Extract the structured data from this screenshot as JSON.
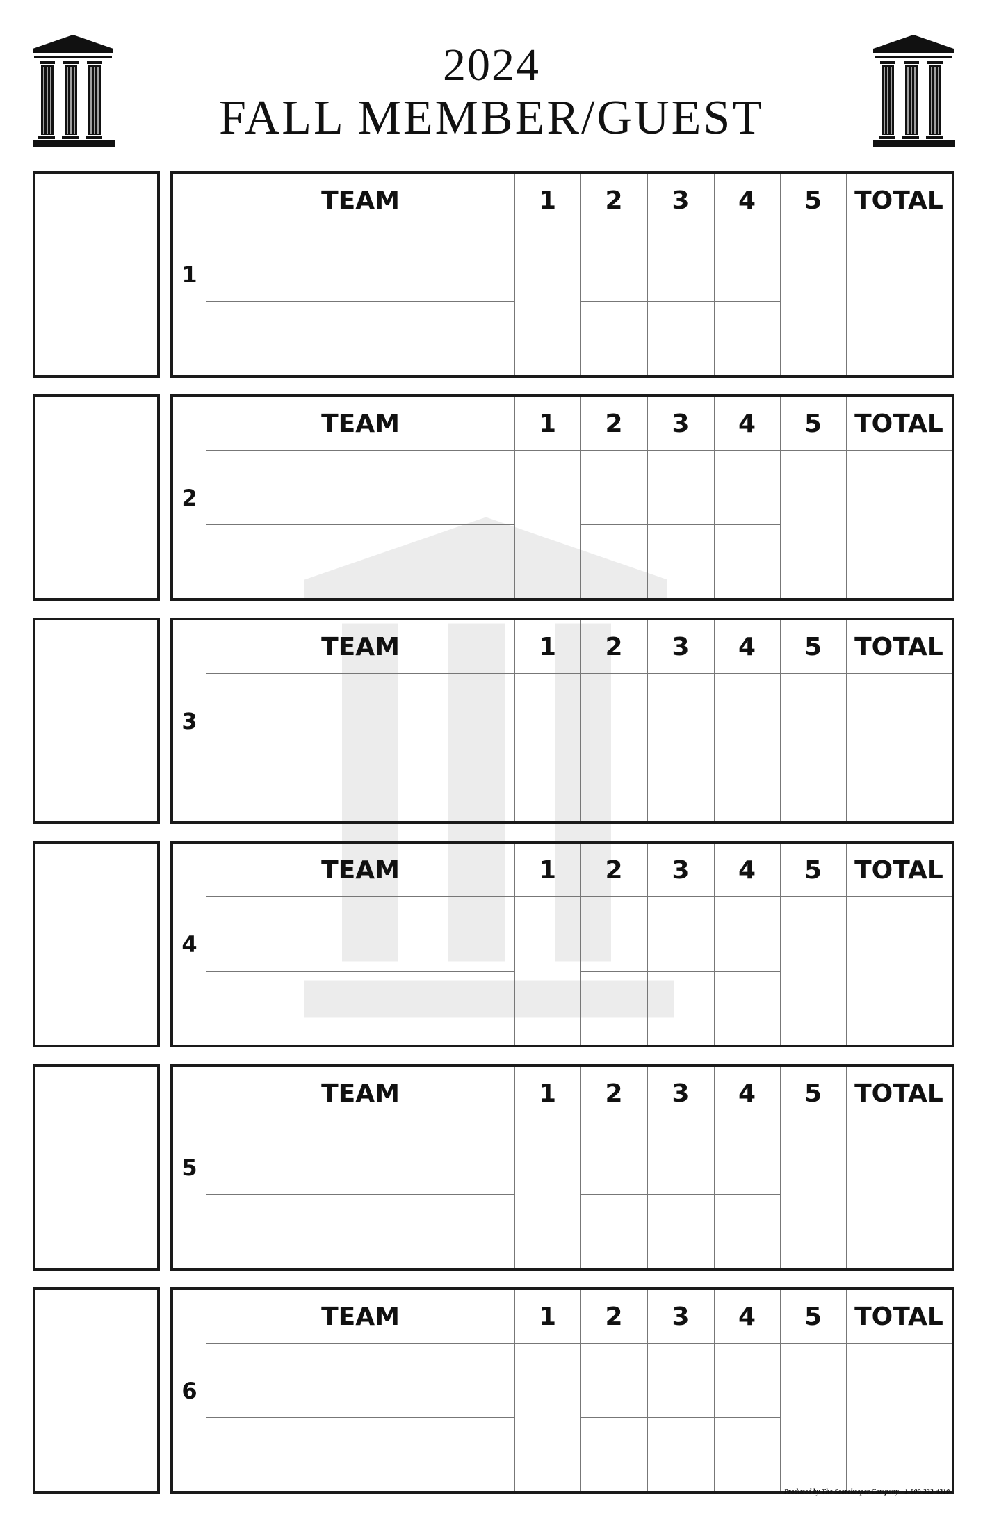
{
  "header": {
    "year": "2024",
    "title": "FALL MEMBER/GUEST",
    "logo_icon": "temple-column-icon"
  },
  "table_headers": {
    "team": "TEAM",
    "rounds": [
      "1",
      "2",
      "3",
      "4",
      "5"
    ],
    "total": "TOTAL"
  },
  "heats": [
    {
      "number": "1"
    },
    {
      "number": "2"
    },
    {
      "number": "3"
    },
    {
      "number": "4"
    },
    {
      "number": "5"
    },
    {
      "number": "6"
    }
  ],
  "footer": {
    "credit": "Produced by The Scorekeeper Company - 1-800-332-4310"
  },
  "colors": {
    "ink": "#1a1a1a",
    "grid": "#777777"
  }
}
